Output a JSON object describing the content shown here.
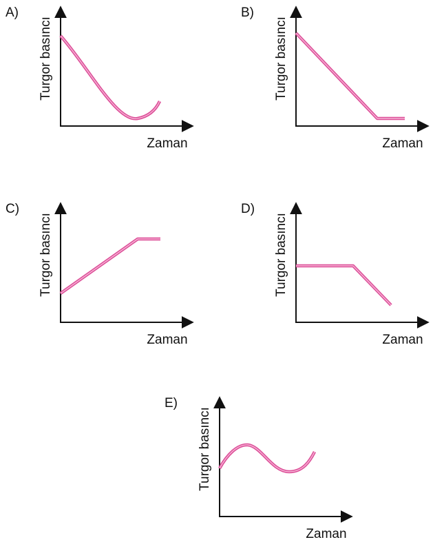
{
  "panels": [
    {
      "label": "A)",
      "y_label": "Turgor basıncı",
      "x_label": "Zaman"
    },
    {
      "label": "B)",
      "y_label": "Turgor basıncı",
      "x_label": "Zaman"
    },
    {
      "label": "C)",
      "y_label": "Turgor basıncı",
      "x_label": "Zaman"
    },
    {
      "label": "D)",
      "y_label": "Turgor basıncı",
      "x_label": "Zaman"
    },
    {
      "label": "E)",
      "y_label": "Turgor basıncı",
      "x_label": "Zaman"
    }
  ]
}
